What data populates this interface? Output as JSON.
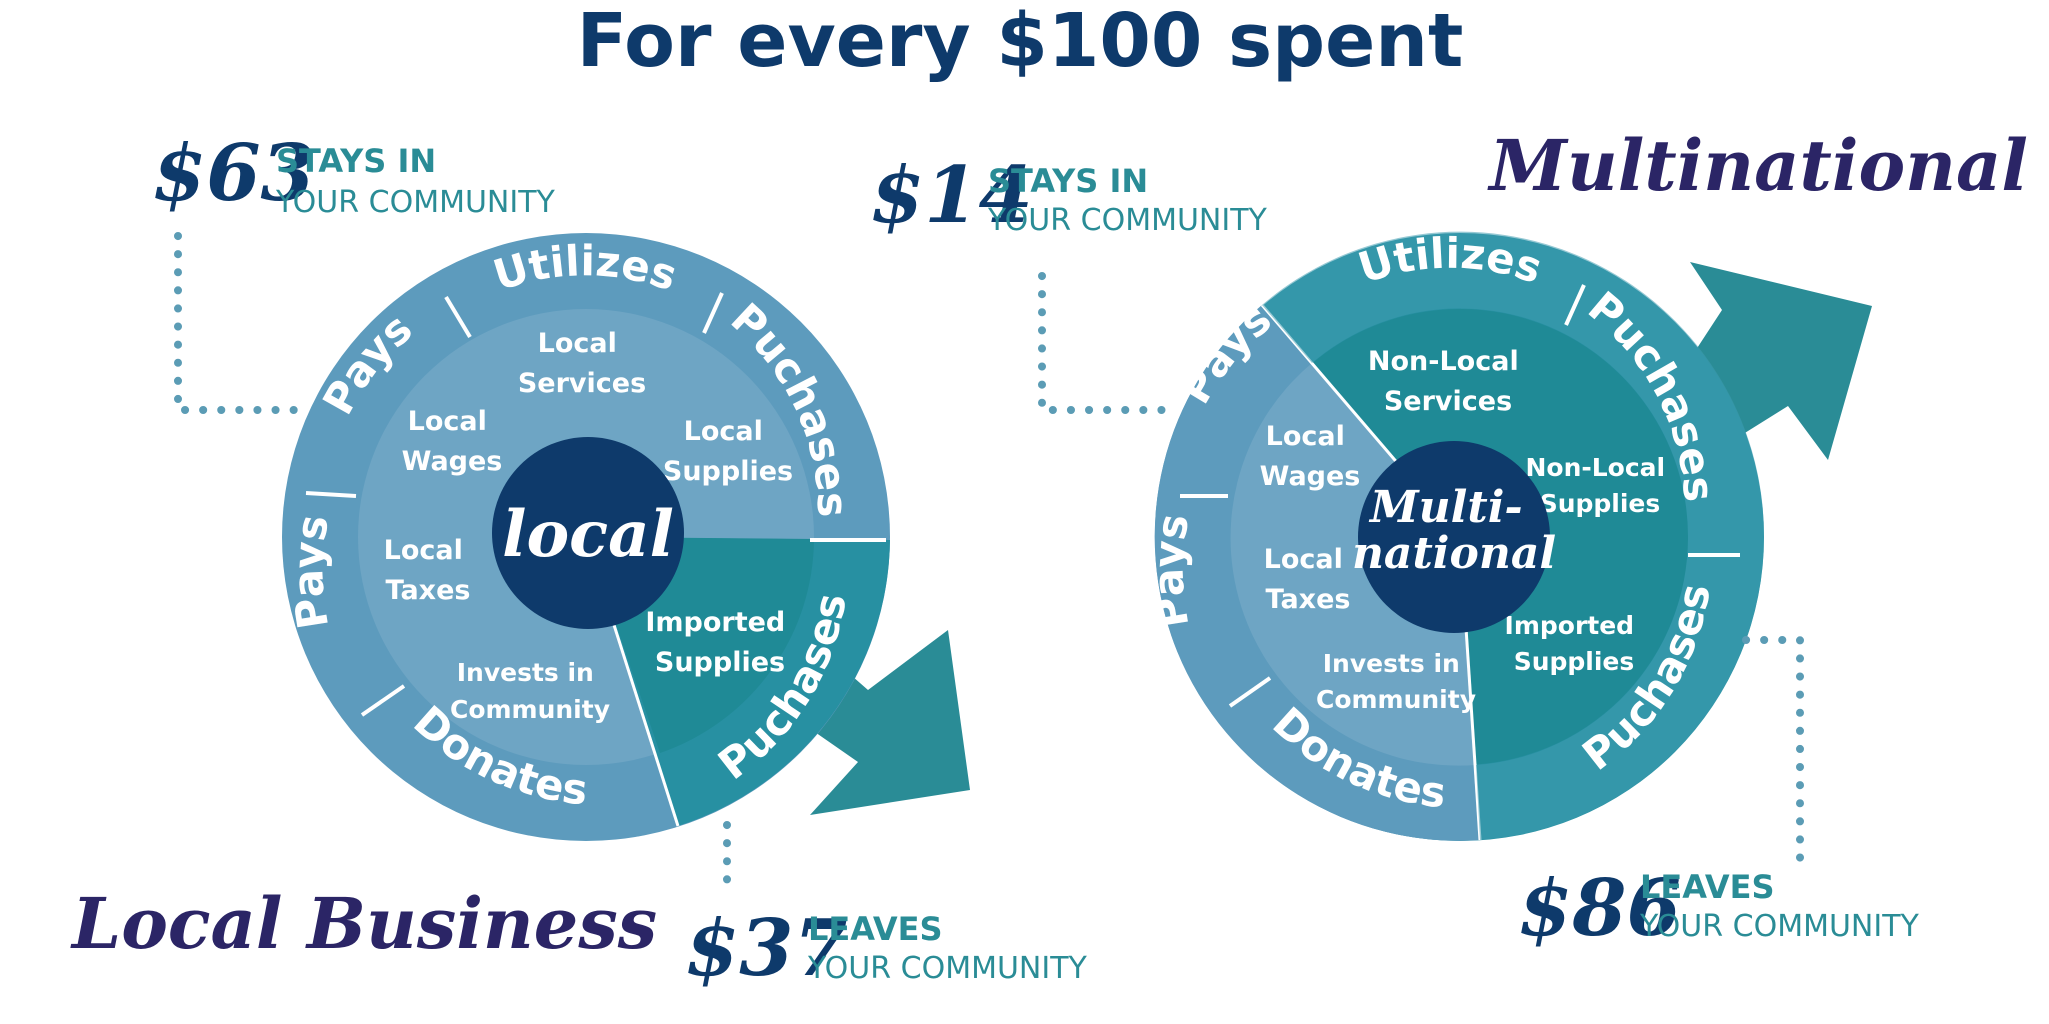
{
  "title": "For every $100 spent",
  "local": {
    "brand": "Local Business",
    "hub": "local",
    "stays_amount": "$63",
    "stays_line1": "STAYS IN",
    "stays_line2": "YOUR COMMUNITY",
    "leaves_amount": "$37",
    "leaves_line1": "LEAVES",
    "leaves_line2": "YOUR COMMUNITY",
    "ring": {
      "utilizes": "Utilizes",
      "puchases_top": "Puchases",
      "puchases_bottom": "Puchases",
      "pays_top": "Pays",
      "pays_bottom": "Pays",
      "donates": "Donates"
    },
    "inner": {
      "services": [
        "Local",
        "Services"
      ],
      "supplies": [
        "Local",
        "Supplies"
      ],
      "wages": [
        "Local",
        "Wages"
      ],
      "taxes": [
        "Local",
        "Taxes"
      ],
      "invests": [
        "Invests in",
        "Community"
      ],
      "imported": [
        "Imported",
        "Supplies"
      ]
    }
  },
  "multinational": {
    "brand": "Multinational",
    "hub_line1": "Multi-",
    "hub_line2": "national",
    "stays_amount": "$14",
    "stays_line1": "STAYS IN",
    "stays_line2": "YOUR COMMUNITY",
    "leaves_amount": "$86",
    "leaves_line1": "LEAVES",
    "leaves_line2": "YOUR COMMUNITY",
    "ring": {
      "utilizes": "Utilizes",
      "puchases_top": "Puchases",
      "puchases_bottom": "Puchases",
      "pays_top": "Pays",
      "pays_bottom": "Pays",
      "donates": "Donates"
    },
    "inner": {
      "services": [
        "Non-Local",
        "Services"
      ],
      "supplies": [
        "Non-Local",
        "Supplies"
      ],
      "wages": [
        "Local",
        "Wages"
      ],
      "taxes": [
        "Local",
        "Taxes"
      ],
      "invests": [
        "Invests in",
        "Community"
      ],
      "imported": [
        "Imported",
        "Supplies"
      ]
    }
  },
  "colors": {
    "navy": "#0e3a6b",
    "teal": "#2a8c96",
    "outer_light": "#5d9bbd",
    "inner_light": "#6ea5c4",
    "outer_dark": "#2790a2",
    "inner_dark": "#1f8a96",
    "brand": "#2b2566",
    "dots": "#5b9cb5"
  }
}
